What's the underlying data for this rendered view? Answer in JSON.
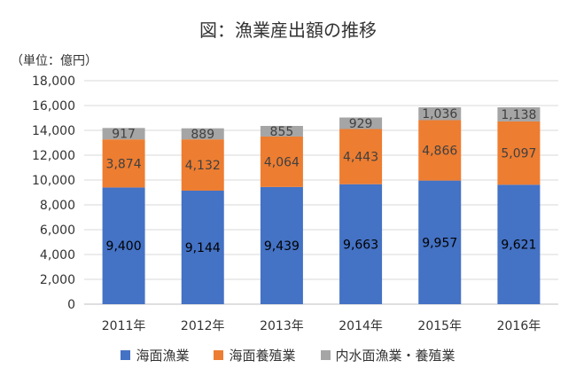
{
  "chart_data": {
    "type": "bar",
    "stacked": true,
    "title": "図：漁業産出額の推移",
    "unit_label": "（単位：億円）",
    "categories": [
      "2011年",
      "2012年",
      "2013年",
      "2014年",
      "2015年",
      "2016年"
    ],
    "series": [
      {
        "name": "海面漁業",
        "color": "#4472C4",
        "label_color": "#000000",
        "values": [
          9400,
          9144,
          9439,
          9663,
          9957,
          9621
        ],
        "labels": [
          "9,400",
          "9,144",
          "9,439",
          "9,663",
          "9,957",
          "9,621"
        ]
      },
      {
        "name": "海面養殖業",
        "color": "#ED7D31",
        "label_color": "#404040",
        "values": [
          3874,
          4132,
          4064,
          4443,
          4866,
          5097
        ],
        "labels": [
          "3,874",
          "4,132",
          "4,064",
          "4,443",
          "4,866",
          "5,097"
        ]
      },
      {
        "name": "内水面漁業・養殖業",
        "color": "#A5A5A5",
        "label_color": "#404040",
        "values": [
          917,
          889,
          855,
          929,
          1036,
          1138
        ],
        "labels": [
          "917",
          "889",
          "855",
          "929",
          "1,036",
          "1,138"
        ]
      }
    ],
    "ylim": [
      0,
      18000
    ],
    "yticks": [
      0,
      2000,
      4000,
      6000,
      8000,
      10000,
      12000,
      14000,
      16000,
      18000
    ],
    "ytick_labels": [
      "0",
      "2,000",
      "4,000",
      "6,000",
      "8,000",
      "10,000",
      "12,000",
      "14,000",
      "16,000",
      "18,000"
    ],
    "grid": true,
    "legend_position": "bottom",
    "gridline_color": "#D9D9D9"
  }
}
